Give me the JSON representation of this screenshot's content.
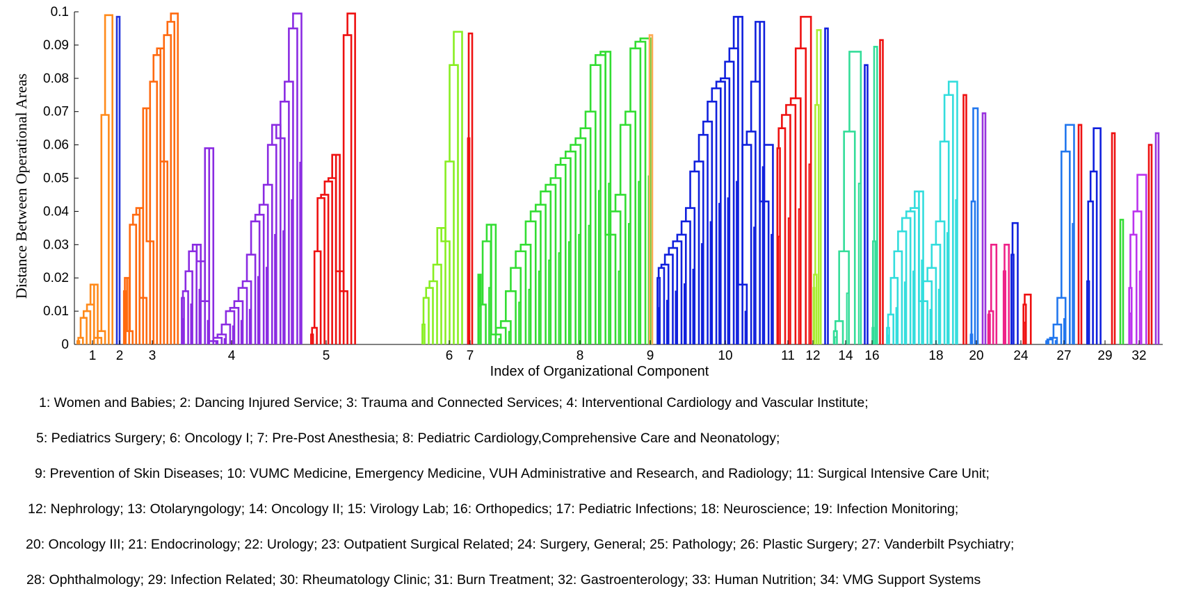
{
  "chart_data": {
    "type": "dendrogram",
    "xlabel": "Index of Organizational Component",
    "ylabel": "Distance Between Operational Areas",
    "ylim": [
      0,
      0.1
    ],
    "yticks": [
      "0",
      "0.01",
      "0.02",
      "0.03",
      "0.04",
      "0.05",
      "0.06",
      "0.07",
      "0.08",
      "0.09",
      "0.1"
    ],
    "xtick_labels": [
      "1",
      "2",
      "3",
      "4",
      "5",
      "6",
      "7",
      "8",
      "9",
      "10",
      "11",
      "12",
      "14",
      "16",
      "18",
      "20",
      "24",
      "27",
      "29",
      "32"
    ],
    "clusters": [
      {
        "id": 1,
        "color": "#ff8a1a",
        "leaves": 8,
        "top": 0.099,
        "heights": [
          0.001,
          0.002,
          0.008,
          0.01,
          0.012,
          0.018,
          0.002,
          0.004,
          0.069,
          0.099
        ]
      },
      {
        "id": 2,
        "color": "#2233dd",
        "leaves": 1,
        "top": 0.0985,
        "heights": [
          0.0985
        ]
      },
      {
        "id": 3,
        "color": "#ff6a10",
        "leaves": 14,
        "top": 0.0995,
        "heights": [
          0.016,
          0.02,
          0.004,
          0.036,
          0.039,
          0.041,
          0.014,
          0.071,
          0.031,
          0.079,
          0.087,
          0.089,
          0.055,
          0.093,
          0.097,
          0.0995
        ]
      },
      {
        "id": 4,
        "color": "#8a2be2",
        "leaves": 30,
        "top": 0.0995,
        "heights": [
          0.014,
          0.016,
          0.022,
          0.028,
          0.03,
          0.025,
          0.013,
          0.059,
          0.001,
          0.002,
          0.003,
          0.006,
          0.01,
          0.011,
          0.013,
          0.017,
          0.019,
          0.027,
          0.037,
          0.039,
          0.042,
          0.048,
          0.06,
          0.066,
          0.062,
          0.073,
          0.079,
          0.095,
          0.0995
        ]
      },
      {
        "id": 5,
        "color": "#ee1111",
        "leaves": 13,
        "top": 0.0995,
        "heights": [
          0.003,
          0.005,
          0.028,
          0.044,
          0.045,
          0.049,
          0.05,
          0.057,
          0.022,
          0.016,
          0.093,
          0.0995
        ]
      },
      {
        "id": 6,
        "color": "#88ee22",
        "leaves": 10,
        "top": 0.094,
        "heights": [
          0.006,
          0.014,
          0.017,
          0.019,
          0.024,
          0.035,
          0.031,
          0.055,
          0.084,
          0.094
        ]
      },
      {
        "id": 7,
        "color": "#ee1111",
        "leaves": 2,
        "top": 0.0935,
        "heights": [
          0.062,
          0.0935
        ]
      },
      {
        "id": 8,
        "color": "#33dd33",
        "leaves": 44,
        "top": 0.092,
        "heights": [
          0.021,
          0.012,
          0.031,
          0.036,
          0.003,
          0.005,
          0.007,
          0.016,
          0.023,
          0.028,
          0.03,
          0.037,
          0.04,
          0.042,
          0.046,
          0.048,
          0.05,
          0.054,
          0.056,
          0.058,
          0.06,
          0.062,
          0.065,
          0.07,
          0.084,
          0.087,
          0.088,
          0.033,
          0.04,
          0.045,
          0.066,
          0.07,
          0.089,
          0.091,
          0.092
        ]
      },
      {
        "id": 9,
        "color": "#ffaa55",
        "leaves": 1,
        "top": 0.093,
        "heights": [
          0.093
        ]
      },
      {
        "id": 10,
        "color": "#1020dd",
        "leaves": 32,
        "top": 0.0985,
        "heights": [
          0.02,
          0.023,
          0.024,
          0.027,
          0.029,
          0.031,
          0.033,
          0.037,
          0.041,
          0.052,
          0.055,
          0.063,
          0.067,
          0.073,
          0.077,
          0.079,
          0.08,
          0.085,
          0.089,
          0.0985,
          0.018,
          0.06,
          0.064,
          0.079,
          0.097,
          0.043,
          0.06
        ]
      },
      {
        "id": 11,
        "color": "#ee1111",
        "leaves": 9,
        "top": 0.0985,
        "heights": [
          0.059,
          0.065,
          0.069,
          0.072,
          0.074,
          0.089,
          0.0985
        ]
      },
      {
        "id": 12,
        "color": "#aaee33",
        "leaves": 4,
        "top": 0.0945,
        "heights": [
          0.017,
          0.021,
          0.072,
          0.0945
        ]
      },
      {
        "id": 13,
        "color": "#1020dd",
        "leaves": 1,
        "top": 0.095,
        "heights": [
          0.095
        ]
      },
      {
        "id": 14,
        "color": "#33dd99",
        "leaves": 8,
        "top": 0.088,
        "heights": [
          0.004,
          0.007,
          0.028,
          0.064,
          0.088
        ]
      },
      {
        "id": 15,
        "color": "#1020dd",
        "leaves": 1,
        "top": 0.084,
        "heights": [
          0.084
        ]
      },
      {
        "id": 16,
        "color": "#33dd99",
        "leaves": 4,
        "top": 0.0895,
        "heights": [
          0.005,
          0.031,
          0.0895
        ]
      },
      {
        "id": 17,
        "color": "#ee1111",
        "leaves": 1,
        "top": 0.0915,
        "heights": [
          0.0915
        ]
      },
      {
        "id": 18,
        "color": "#33dddd",
        "leaves": 22,
        "top": 0.079,
        "heights": [
          0.005,
          0.009,
          0.02,
          0.028,
          0.034,
          0.038,
          0.04,
          0.041,
          0.046,
          0.013,
          0.019,
          0.023,
          0.03,
          0.037,
          0.061,
          0.075,
          0.079
        ]
      },
      {
        "id": 19,
        "color": "#ee1111",
        "leaves": 1,
        "top": 0.075,
        "heights": [
          0.075
        ]
      },
      {
        "id": 20,
        "color": "#2277ee",
        "leaves": 3,
        "top": 0.071,
        "heights": [
          0.003,
          0.043,
          0.071
        ]
      },
      {
        "id": 21,
        "color": "#9933dd",
        "leaves": 1,
        "top": 0.0695,
        "heights": [
          0.0695
        ]
      },
      {
        "id": 22,
        "color": "#ee2288",
        "leaves": 3,
        "top": 0.03,
        "heights": [
          0.009,
          0.01,
          0.03
        ]
      },
      {
        "id": 23,
        "color": "#ee2288",
        "leaves": 2,
        "top": 0.03,
        "heights": [
          0.022,
          0.03
        ]
      },
      {
        "id": 24,
        "color": "#1020dd",
        "leaves": 3,
        "top": 0.0365,
        "heights": [
          0.027,
          0.0365
        ]
      },
      {
        "id": 25,
        "color": "#ee1111",
        "leaves": 2,
        "top": 0.015,
        "heights": [
          0.012,
          0.015
        ]
      },
      {
        "id": 26,
        "color": "#2277ee",
        "leaves": 7,
        "top": 0.066,
        "heights": [
          0.001,
          0.0015,
          0.002,
          0.006,
          0.014,
          0.058,
          0.066
        ]
      },
      {
        "id": 27,
        "color": "#ee1111",
        "leaves": 1,
        "top": 0.066,
        "heights": [
          0.066
        ]
      },
      {
        "id": 28,
        "color": "#1020dd",
        "leaves": 5,
        "top": 0.065,
        "heights": [
          0.019,
          0.043,
          0.052,
          0.065
        ]
      },
      {
        "id": 29,
        "color": "#ee1111",
        "leaves": 1,
        "top": 0.0635,
        "heights": [
          0.0635
        ]
      },
      {
        "id": 30,
        "color": "#33dd33",
        "leaves": 1,
        "top": 0.0375,
        "heights": [
          0.0375
        ]
      },
      {
        "id": 31,
        "color": "#bb33ee",
        "leaves": 5,
        "top": 0.051,
        "heights": [
          0.017,
          0.033,
          0.04,
          0.051
        ]
      },
      {
        "id": 32,
        "color": "#ee1111",
        "leaves": 2,
        "top": 0.06,
        "heights": [
          0.06
        ]
      },
      {
        "id": 33,
        "color": "#9933dd",
        "leaves": 1,
        "top": 0.0635,
        "heights": [
          0.0635
        ]
      }
    ]
  },
  "legend_lines": [
    "1: Women and Babies; 2: Dancing Injured Service; 3: Trauma and Connected Services;  4: Interventional Cardiology and Vascular Institute;",
    "5: Pediatrics Surgery;  6: Oncology I;  7: Pre-Post Anesthesia; 8: Pediatric Cardiology,Comprehensive Care and Neonatology;",
    "9: Prevention of Skin Diseases; 10: VUMC Medicine, Emergency Medicine, VUH Administrative and Research, and Radiology; 11: Surgical Intensive Care Unit;",
    "12: Nephrology; 13: Otolaryngology; 14: Oncology II; 15: Virology Lab; 16: Orthopedics;  17: Pediatric Infections; 18: Neuroscience;  19: Infection Monitoring;",
    "20: Oncology III; 21: Endocrinology; 22: Urology; 23: Outpatient  Surgical Related; 24: Surgery, General; 25: Pathology; 26: Plastic Surgery;  27: Vanderbilt Psychiatry;",
    "28: Ophthalmology; 29: Infection Related; 30: Rheumatology Clinic; 31: Burn Treatment; 32: Gastroenterology; 33: Human Nutrition; 34: VMG Support Systems"
  ]
}
